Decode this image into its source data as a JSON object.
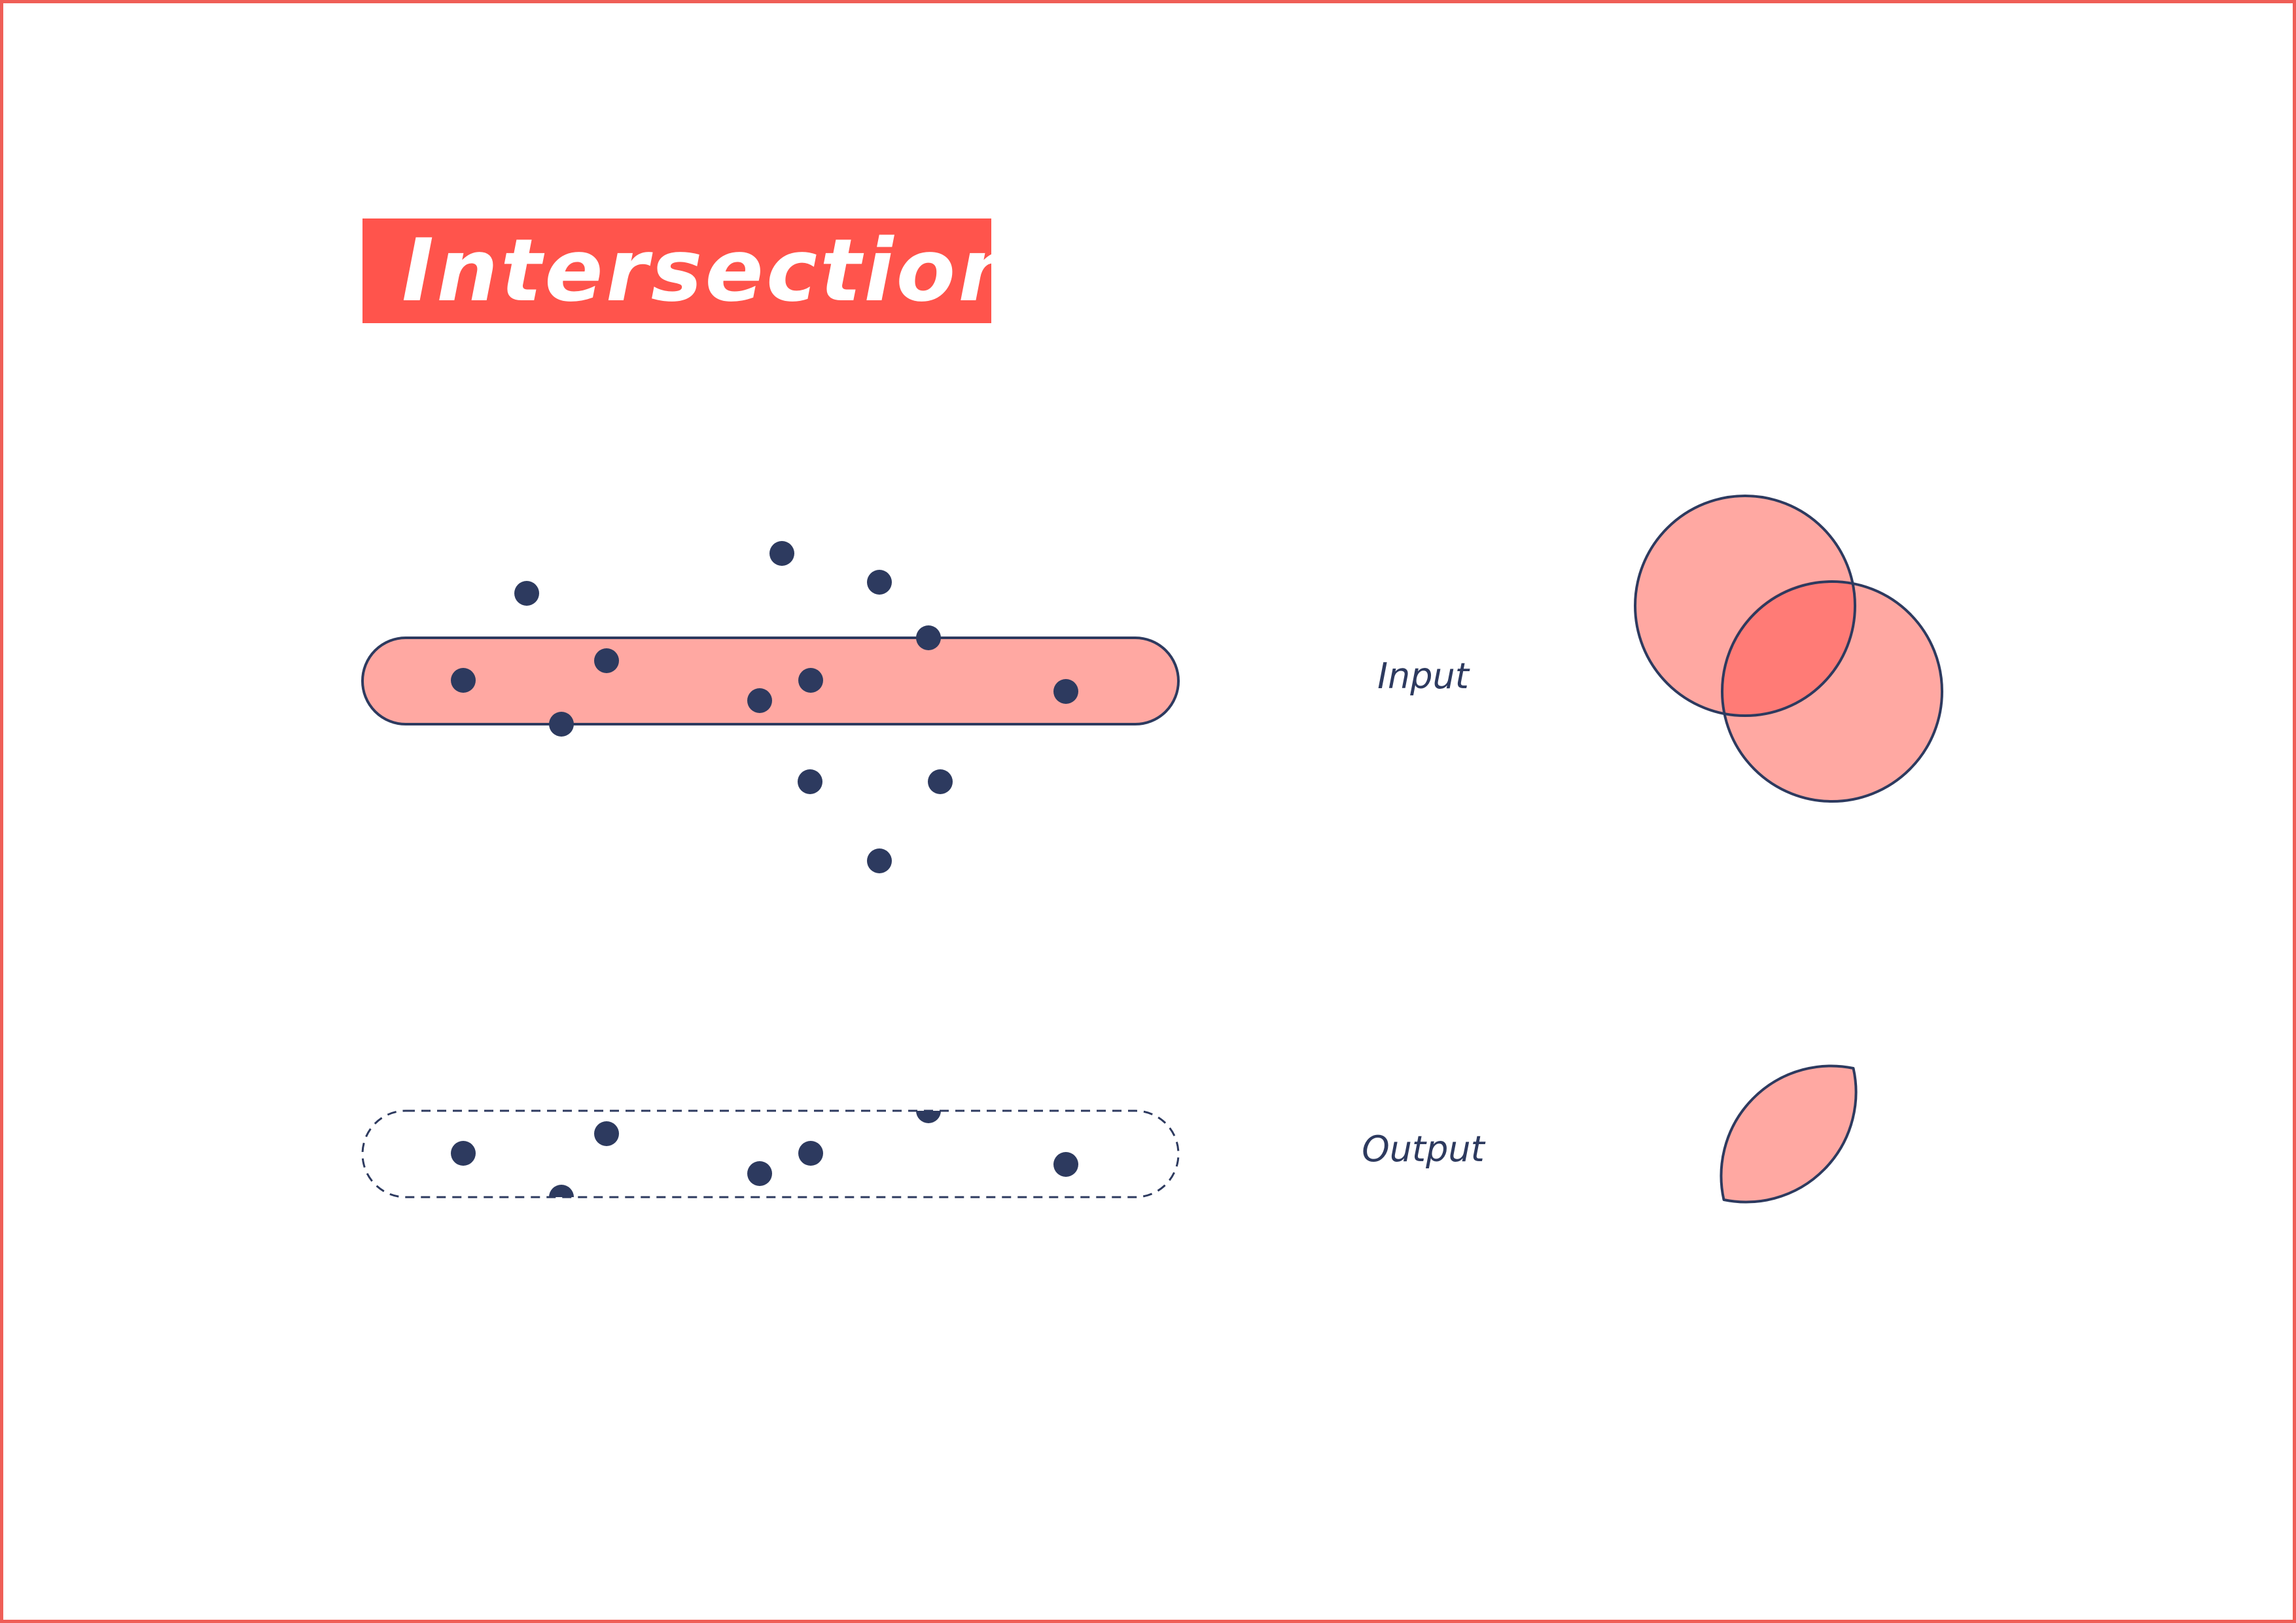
{
  "title": "Intersection",
  "labels": {
    "input": "Input",
    "output": "Output"
  },
  "colors": {
    "accent": "#ff544c",
    "fill": "#ffa8a2",
    "overlap": "#ff7b76",
    "ink": "#2d3a5f",
    "frame": "#ef5e57"
  }
}
